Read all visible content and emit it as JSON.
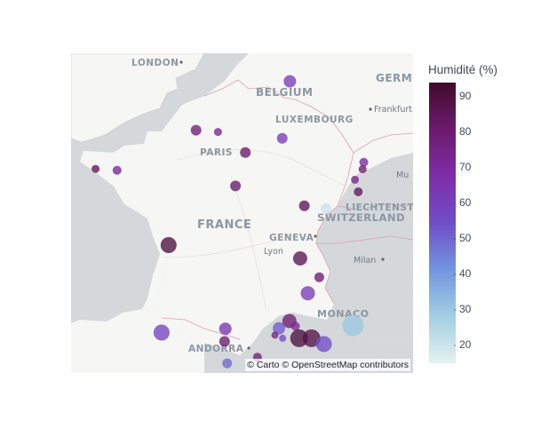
{
  "map": {
    "labels": {
      "london": "LONDON",
      "belgium": "BELGIUM",
      "germany": "GERM",
      "luxembourg": "LUXEMBOURG",
      "frankfurt": "Frankfurt",
      "paris": "PARIS",
      "munich": "Mu",
      "france": "FRANCE",
      "liechtenstein": "LIECHTENST",
      "switzerland": "SWITZERLAND",
      "geneva": "GENEVA",
      "lyon": "Lyon",
      "milan": "Milan",
      "monaco": "MONACO",
      "andorra": "ANDORRA"
    },
    "attribution": "© Carto © OpenStreetMap contributors"
  },
  "colorbar": {
    "title": "Humidité (%)",
    "min": 15,
    "max": 94,
    "ticks": [
      "90",
      "80",
      "70",
      "60",
      "50",
      "40",
      "30",
      "20"
    ],
    "tick_values": [
      90,
      80,
      70,
      60,
      50,
      40,
      30,
      20
    ],
    "colorscale": [
      "#e4f1f1",
      "#a3cfe2",
      "#7295e0",
      "#6f4ec8",
      "#7d2ea8",
      "#6c1a6e",
      "#3f0b2b"
    ]
  },
  "chart_data": {
    "type": "scatter",
    "color_variable": "Humidité (%)",
    "points": [
      {
        "lon": 4.38,
        "lat": 50.84,
        "humidity": 62,
        "size": 14
      },
      {
        "lon": 4.03,
        "lat": 49.26,
        "humidity": 62,
        "size": 12
      },
      {
        "lon": 1.1,
        "lat": 49.44,
        "humidity": 72,
        "size": 9
      },
      {
        "lon": 0.1,
        "lat": 49.49,
        "humidity": 78,
        "size": 12
      },
      {
        "lon": 1.9,
        "lat": 47.9,
        "humidity": 82,
        "size": 12
      },
      {
        "lon": 2.35,
        "lat": 48.86,
        "humidity": 82,
        "size": 12
      },
      {
        "lon": -4.48,
        "lat": 48.39,
        "humidity": 85,
        "size": 9
      },
      {
        "lon": -3.5,
        "lat": 48.35,
        "humidity": 72,
        "size": 10
      },
      {
        "lon": 7.75,
        "lat": 48.58,
        "humidity": 70,
        "size": 10
      },
      {
        "lon": 7.35,
        "lat": 48.08,
        "humidity": 75,
        "size": 9
      },
      {
        "lon": 7.7,
        "lat": 48.38,
        "humidity": 80,
        "size": 9
      },
      {
        "lon": 7.5,
        "lat": 47.73,
        "humidity": 85,
        "size": 10
      },
      {
        "lon": 5.04,
        "lat": 47.32,
        "humidity": 85,
        "size": 12
      },
      {
        "lon": 6.02,
        "lat": 47.24,
        "humidity": 20,
        "size": 12
      },
      {
        "lon": -1.15,
        "lat": 46.16,
        "humidity": 90,
        "size": 18
      },
      {
        "lon": 4.85,
        "lat": 45.76,
        "humidity": 86,
        "size": 16
      },
      {
        "lon": 5.72,
        "lat": 45.19,
        "humidity": 80,
        "size": 11
      },
      {
        "lon": 5.2,
        "lat": 44.7,
        "humidity": 62,
        "size": 16
      },
      {
        "lon": 1.44,
        "lat": 43.6,
        "humidity": 65,
        "size": 14
      },
      {
        "lon": 1.4,
        "lat": 43.2,
        "humidity": 80,
        "size": 12
      },
      {
        "lon": -1.47,
        "lat": 43.48,
        "humidity": 58,
        "size": 18
      },
      {
        "lon": 2.9,
        "lat": 42.7,
        "humidity": 78,
        "size": 10
      },
      {
        "lon": 1.52,
        "lat": 42.51,
        "humidity": 50,
        "size": 11
      },
      {
        "lon": 3.88,
        "lat": 43.61,
        "humidity": 52,
        "size": 14
      },
      {
        "lon": 4.36,
        "lat": 43.84,
        "humidity": 80,
        "size": 16
      },
      {
        "lon": 4.63,
        "lat": 43.68,
        "humidity": 72,
        "size": 10
      },
      {
        "lon": 3.7,
        "lat": 43.4,
        "humidity": 75,
        "size": 8
      },
      {
        "lon": 4.05,
        "lat": 43.3,
        "humidity": 55,
        "size": 8
      },
      {
        "lon": 4.8,
        "lat": 43.3,
        "humidity": 90,
        "size": 20
      },
      {
        "lon": 5.37,
        "lat": 43.3,
        "humidity": 88,
        "size": 20
      },
      {
        "lon": 5.93,
        "lat": 43.12,
        "humidity": 55,
        "size": 18
      },
      {
        "lon": 7.26,
        "lat": 43.7,
        "humidity": 30,
        "size": 24
      }
    ]
  }
}
